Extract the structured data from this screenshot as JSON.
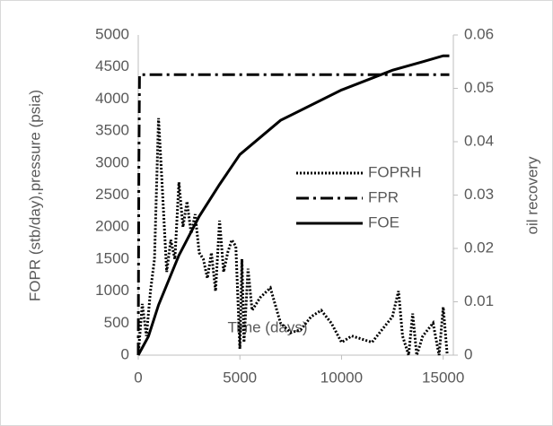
{
  "chart_data": {
    "type": "line",
    "x_label": "Time (days)",
    "y_label": "FOPR (stb/day),pressure (psia)",
    "y2_label": "oil recovery",
    "xlim": [
      0,
      15500
    ],
    "xticks": [
      0,
      5000,
      10000,
      15000
    ],
    "ylim": [
      0,
      5000
    ],
    "yticks": [
      0,
      500,
      1000,
      1500,
      2000,
      2500,
      3000,
      3500,
      4000,
      4500,
      5000
    ],
    "y2lim": [
      0,
      0.06
    ],
    "y2ticks": [
      0,
      0.01,
      0.02,
      0.03,
      0.04,
      0.05,
      0.06
    ],
    "legend": "right",
    "series": [
      {
        "name": "FOPRH",
        "color": "#000000",
        "dash": "dotted",
        "x": [
          0,
          200,
          400,
          600,
          800,
          1000,
          1200,
          1400,
          1600,
          1800,
          2000,
          2200,
          2400,
          2600,
          2800,
          3000,
          3200,
          3400,
          3600,
          3800,
          4000,
          4200,
          4400,
          4600,
          4800,
          5000,
          5100,
          5200,
          5400,
          5600,
          6000,
          6500,
          7000,
          7500,
          8000,
          8500,
          9000,
          9500,
          10000,
          10500,
          11000,
          11500,
          12000,
          12500,
          12800,
          13000,
          13300,
          13500,
          13700,
          14000,
          14500,
          14800,
          15000,
          15200
        ],
        "values": [
          0,
          800,
          300,
          1000,
          1500,
          3700,
          2500,
          1300,
          1800,
          1500,
          2700,
          2000,
          2400,
          1900,
          2200,
          1600,
          1500,
          1200,
          1600,
          1000,
          2100,
          1300,
          1600,
          1800,
          1700,
          100,
          1500,
          200,
          1350,
          700,
          900,
          1050,
          500,
          350,
          400,
          600,
          700,
          500,
          200,
          300,
          250,
          200,
          400,
          600,
          1000,
          300,
          0,
          650,
          0,
          300,
          500,
          0,
          750,
          0
        ]
      },
      {
        "name": "FPR",
        "color": "#000000",
        "dash": "dashdot",
        "x": [
          0,
          30,
          60,
          15300
        ],
        "values": [
          0,
          3000,
          4380,
          4380
        ]
      },
      {
        "name": "FOE",
        "color": "#000000",
        "dash": "solid",
        "axis": "y2",
        "x": [
          0,
          500,
          1000,
          2000,
          3000,
          4000,
          5000,
          7000,
          10000,
          12500,
          14000,
          15000,
          15300
        ],
        "values": [
          0,
          0.0035,
          0.0094,
          0.0187,
          0.026,
          0.032,
          0.0376,
          0.044,
          0.0497,
          0.0534,
          0.055,
          0.0561,
          0.0561
        ]
      }
    ]
  }
}
